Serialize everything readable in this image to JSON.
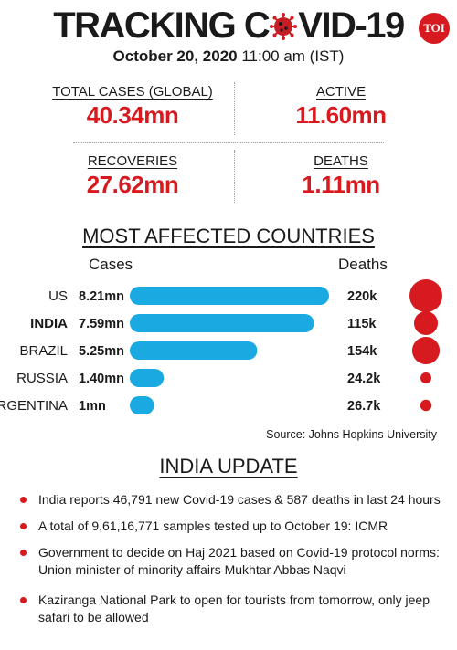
{
  "header": {
    "title_left": "TRACKING C",
    "title_right": "VID-19",
    "date": "October 20, 2020",
    "time": "11:00 am (IST)",
    "brand": "TOI"
  },
  "stats": [
    {
      "label": "TOTAL CASES (GLOBAL)",
      "value": "40.34mn"
    },
    {
      "label": "ACTIVE",
      "value": "11.60mn"
    },
    {
      "label": "RECOVERIES",
      "value": "27.62mn"
    },
    {
      "label": "DEATHS",
      "value": "1.11mn"
    }
  ],
  "countries_section": {
    "title": "MOST AFFECTED COUNTRIES",
    "cases_header": "Cases",
    "deaths_header": "Deaths",
    "source": "Source: Johns Hopkins University"
  },
  "chart_data": {
    "type": "bar",
    "categories": [
      "US",
      "INDIA",
      "BRAZIL",
      "RUSSIA",
      "ARGENTINA"
    ],
    "highlight": "INDIA",
    "series": [
      {
        "name": "Cases",
        "values": [
          8.21,
          7.59,
          5.25,
          1.4,
          1.0
        ],
        "labels": [
          "8.21mn",
          "7.59mn",
          "5.25mn",
          "1.40mn",
          "1mn"
        ]
      },
      {
        "name": "Deaths",
        "values": [
          220,
          115,
          154,
          24.2,
          26.7
        ],
        "labels": [
          "220k",
          "115k",
          "154k",
          "24.2k",
          "26.7k"
        ]
      }
    ],
    "colors": {
      "bar": "#1aa9e1",
      "bubble": "#d71920"
    }
  },
  "india_update": {
    "title": "INDIA UPDATE",
    "items": [
      "India reports 46,791 new Covid-19 cases & 587 deaths in last 24 hours",
      "A total of 9,61,16,771 samples tested up to October 19: ICMR",
      "Government to decide on Haj 2021 based on Covid-19 protocol norms: Union minister of minority affairs Mukhtar Abbas Naqvi",
      "Kaziranga National Park to open for tourists from tomorrow, only jeep safari to be allowed"
    ]
  },
  "colors": {
    "accent": "#d71920",
    "bar": "#1aa9e1"
  }
}
